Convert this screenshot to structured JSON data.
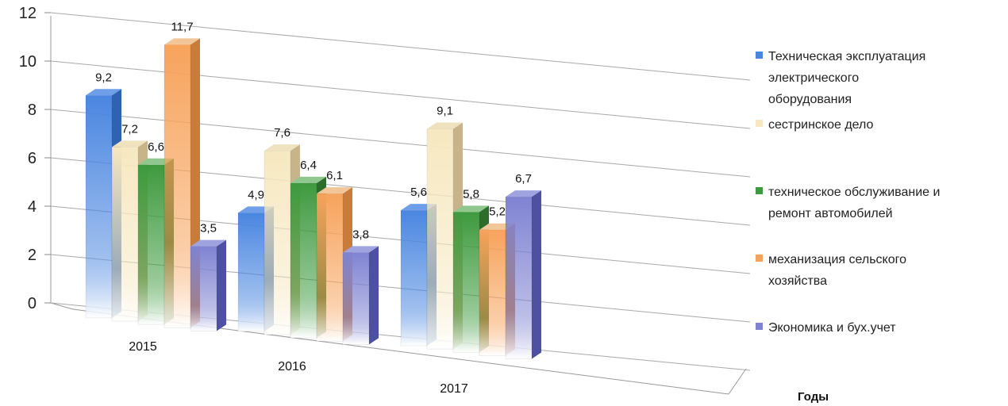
{
  "chart_data": {
    "type": "bar",
    "categories": [
      "2015",
      "2016",
      "2017"
    ],
    "series": [
      {
        "name": "Техническая эксплуатация электрического оборудования",
        "values": [
          9.2,
          4.9,
          5.6
        ],
        "labels": [
          "9,2",
          "4,9",
          "5,6"
        ]
      },
      {
        "name": "сестринское дело",
        "values": [
          7.2,
          7.6,
          9.1
        ],
        "labels": [
          "7,2",
          "7,6",
          "9,1"
        ]
      },
      {
        "name": "техническое обслуживание и ремонт автомобилей",
        "values": [
          6.6,
          6.4,
          5.8
        ],
        "labels": [
          "6,6",
          "6,4",
          "5,8"
        ]
      },
      {
        "name": "механизация сельского хозяйства",
        "values": [
          11.7,
          6.1,
          5.2
        ],
        "labels": [
          "11,7",
          "6,1",
          "5,2"
        ]
      },
      {
        "name": "Экономика и бух.учет",
        "values": [
          3.5,
          3.8,
          6.7
        ],
        "labels": [
          "3,5",
          "3,8",
          "6,7"
        ]
      }
    ],
    "legend_lines": [
      [
        "Техническая эксплуатация",
        "электрического",
        "оборудования"
      ],
      [
        "сестринское дело"
      ],
      [
        "техническое обслуживание и",
        "ремонт автомобилей"
      ],
      [
        "механизация сельского",
        "хозяйства"
      ],
      [
        "Экономика и бух.учет"
      ]
    ],
    "colors": [
      "#4a86e0",
      "#f6e8c0",
      "#3e9a3e",
      "#f7a35c",
      "#7f83d2"
    ],
    "side_colors": [
      "#2f62b0",
      "#c7b48a",
      "#2c6d2c",
      "#c97c3a",
      "#4d51a0"
    ],
    "top_colors": [
      "#6f9fe8",
      "#efe2bf",
      "#8fc78f",
      "#f3c69a",
      "#9fa3e0"
    ],
    "yticks": [
      "0",
      "2",
      "4",
      "6",
      "8",
      "10",
      "12"
    ],
    "ylim": [
      0,
      12
    ],
    "xlabel": "Годы",
    "ylabel": "",
    "title": "",
    "legend_position": "right",
    "chart_style": "3d-clustered-column"
  }
}
